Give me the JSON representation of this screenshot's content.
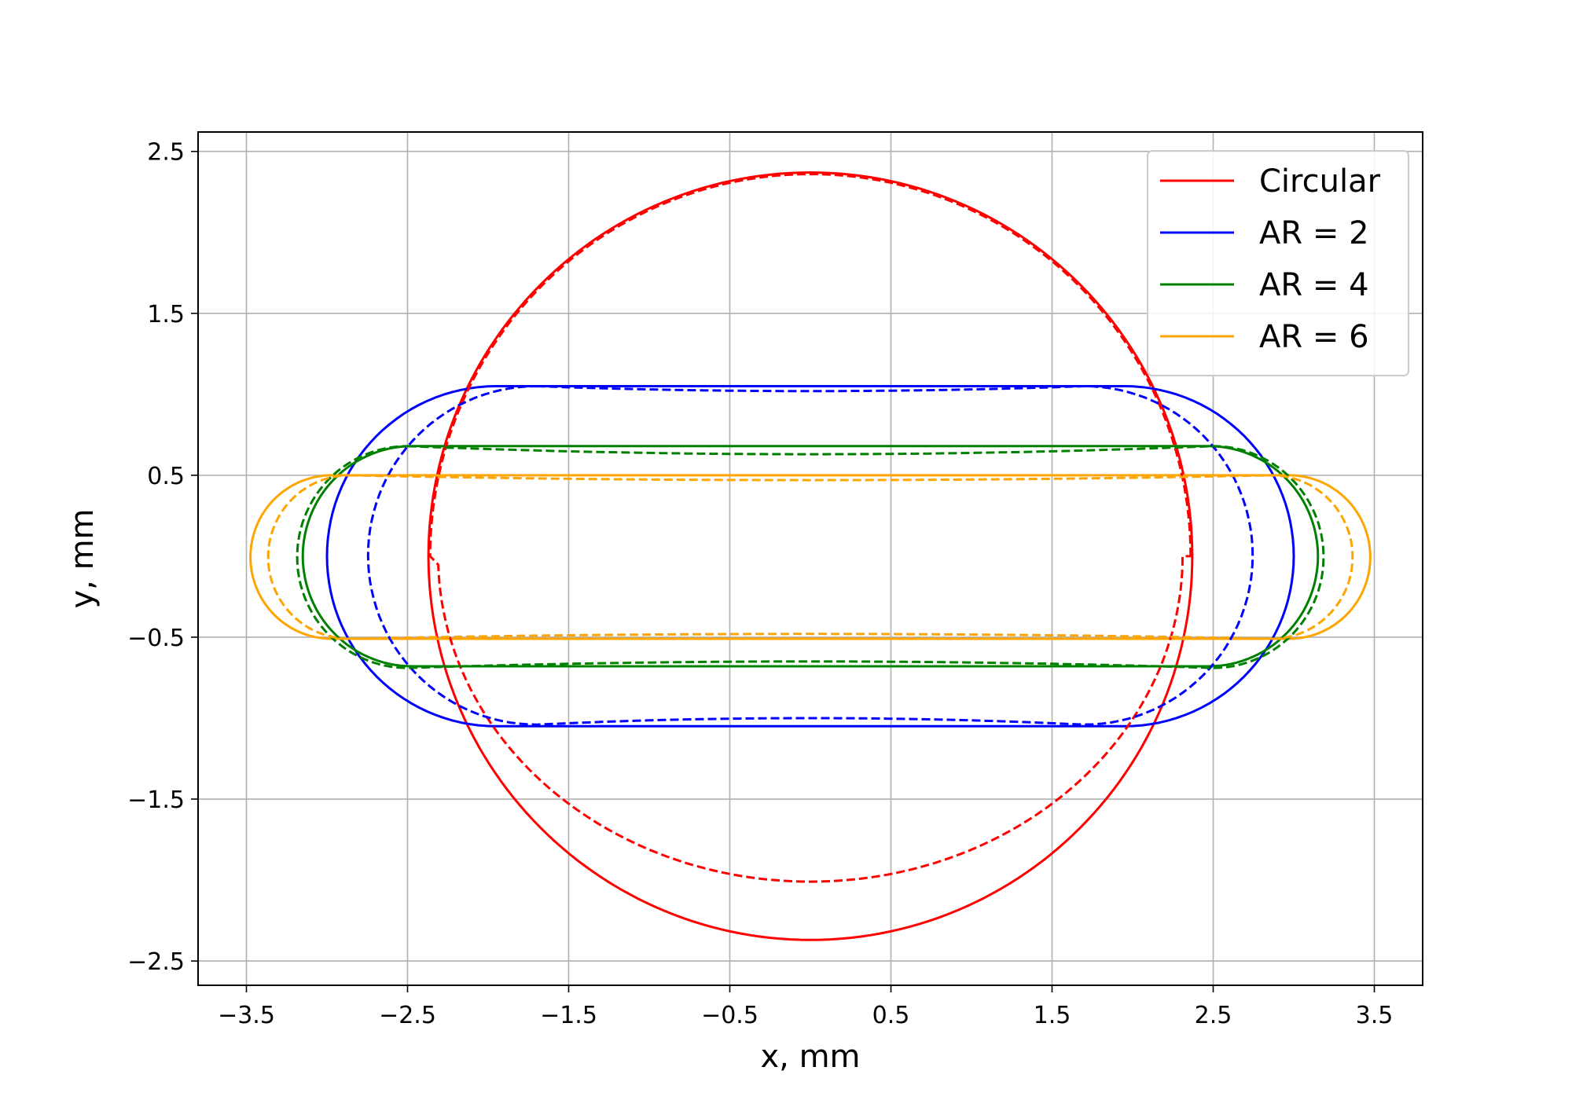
{
  "chart_data": {
    "type": "line",
    "title": "",
    "xlabel": "x, mm",
    "ylabel": "y, mm",
    "xlim": [
      -3.8,
      3.8
    ],
    "ylim": [
      -2.65,
      2.62
    ],
    "xticks": [
      -3.5,
      -2.5,
      -1.5,
      -0.5,
      0.5,
      1.5,
      2.5,
      3.5
    ],
    "yticks": [
      -2.5,
      -1.5,
      -0.5,
      0.5,
      1.5,
      2.5
    ],
    "xtick_labels": [
      "−3.5",
      "−2.5",
      "−1.5",
      "−0.5",
      "0.5",
      "1.5",
      "2.5",
      "3.5"
    ],
    "ytick_labels": [
      "−2.5",
      "−1.5",
      "−0.5",
      "0.5",
      "1.5",
      "2.5"
    ],
    "grid": true,
    "legend_position": "top-right",
    "series": [
      {
        "name": "Circular",
        "color": "#ff0000",
        "line_style": "solid",
        "shape": {
          "kind": "circle",
          "cx": 0.0,
          "cy": 0.0,
          "rx": 2.37,
          "ry": 2.37
        }
      },
      {
        "name": "AR = 2",
        "color": "#0000ff",
        "line_style": "solid",
        "shape": {
          "kind": "stadium",
          "x0": -1.95,
          "x1": 1.95,
          "y_top": 1.05,
          "y_bottom": -1.05
        }
      },
      {
        "name": "AR = 4",
        "color": "#008000",
        "line_style": "solid",
        "shape": {
          "kind": "stadium",
          "x0": -2.47,
          "x1": 2.47,
          "y_top": 0.68,
          "y_bottom": -0.68
        }
      },
      {
        "name": "AR = 6",
        "color": "#ffa500",
        "line_style": "solid",
        "shape": {
          "kind": "stadium",
          "x0": -2.97,
          "x1": 2.97,
          "y_top": 0.5,
          "y_bottom": -0.51
        }
      },
      {
        "name": "",
        "color": "#ff0000",
        "line_style": "dashed",
        "shape": {
          "kind": "egg",
          "cx": 0.0,
          "rx_top": 2.36,
          "rx_bottom": 2.31,
          "y_top": 2.36,
          "y_bottom": -2.01
        }
      },
      {
        "name": "",
        "color": "#0000ff",
        "line_style": "dashed",
        "shape": {
          "kind": "stadium",
          "x0": -1.7,
          "x1": 1.7,
          "y_top": 1.05,
          "y_bottom": -1.04,
          "sag_top": 0.03,
          "sag_bottom": 0.04
        }
      },
      {
        "name": "",
        "color": "#008000",
        "line_style": "dashed",
        "shape": {
          "kind": "stadium",
          "x0": -2.5,
          "x1": 2.5,
          "y_top": 0.68,
          "y_bottom": -0.69,
          "sag_top": 0.05,
          "sag_bottom": 0.04
        }
      },
      {
        "name": "",
        "color": "#ffa500",
        "line_style": "dashed",
        "shape": {
          "kind": "stadium",
          "x0": -2.86,
          "x1": 2.86,
          "y_top": 0.5,
          "y_bottom": -0.51,
          "sag_top": 0.03,
          "sag_bottom": 0.03
        }
      }
    ]
  }
}
